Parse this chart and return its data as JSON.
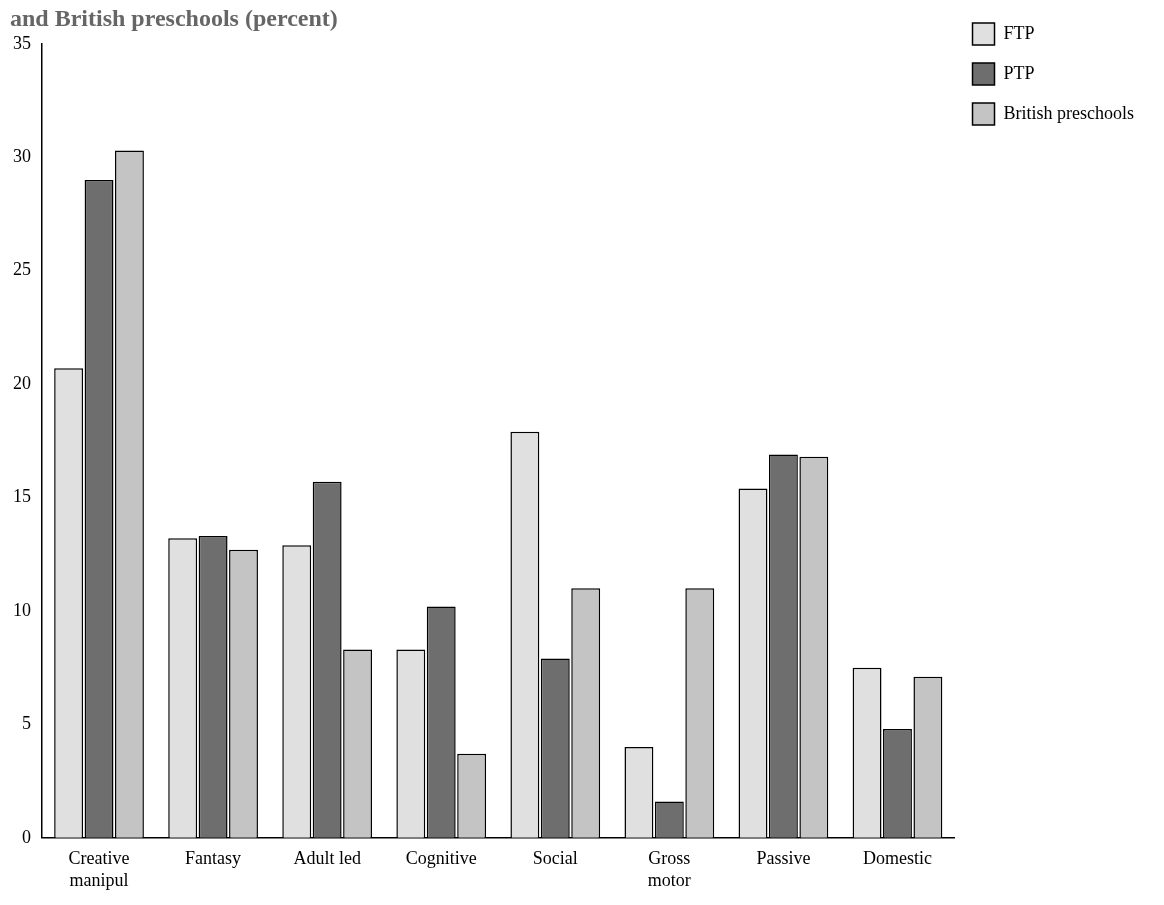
{
  "chart_data": {
    "type": "bar",
    "title": "and British preschools (percent)",
    "categories": [
      "Creative manipul",
      "Fantasy",
      "Adult led",
      "Cognitive",
      "Social",
      "Gross motor",
      "Passive",
      "Domestic"
    ],
    "series": [
      {
        "name": "FTP",
        "color": "#e0e0e0",
        "values": [
          20.7,
          13.2,
          12.9,
          8.3,
          17.9,
          4.0,
          15.4,
          7.5
        ]
      },
      {
        "name": "PTP",
        "color": "#6e6e6e",
        "values": [
          29.0,
          13.3,
          15.7,
          10.2,
          7.9,
          1.6,
          16.9,
          4.8
        ]
      },
      {
        "name": "British preschools",
        "color": "#c4c4c4",
        "values": [
          30.3,
          12.7,
          8.3,
          3.7,
          11.0,
          11.0,
          16.8,
          7.1
        ]
      }
    ],
    "ylim": [
      0,
      35
    ],
    "yticks": [
      0,
      5,
      10,
      15,
      20,
      25,
      30,
      35
    ],
    "grid": false,
    "legend": "top right"
  }
}
